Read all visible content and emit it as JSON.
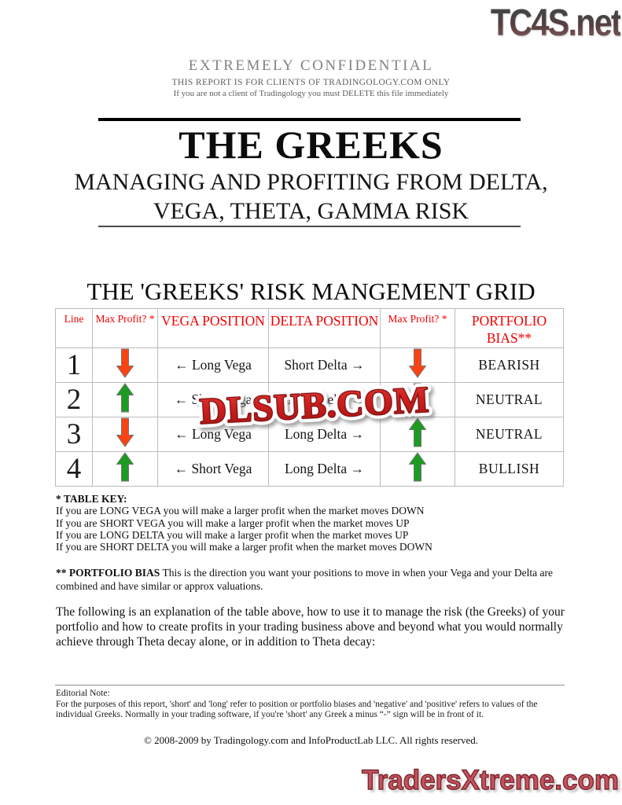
{
  "branding": {
    "top_logo": "TC4S.net",
    "bottom_logo": "TradersXtreme.com",
    "watermark": "DLSUB.COM"
  },
  "confidential": {
    "line1": "EXTREMELY CONFIDENTIAL",
    "line2": "THIS REPORT IS FOR CLIENTS OF TRADINGOLOGY.COM ONLY",
    "line3": "If you are not a client of Tradingology you must DELETE this file immediately"
  },
  "title": {
    "main": "THE GREEKS",
    "subtitle_line1": "MANAGING AND PROFITING FROM DELTA,",
    "subtitle_line2": "VEGA, THETA, GAMMA RISK"
  },
  "grid": {
    "heading": "THE 'GREEKS' RISK MANGEMENT GRID",
    "columns": [
      "Line",
      "Max Profit? *",
      "VEGA POSITION",
      "DELTA POSITION",
      "Max Profit? *",
      "PORTFOLIO BIAS**"
    ],
    "header_color": "#f20000",
    "arrow_up_color": "#1d9b20",
    "arrow_down_color": "#fb4312",
    "rows": [
      {
        "line": "1",
        "vega_profit": "down",
        "vega": "← Long Vega",
        "delta": "Short Delta →",
        "delta_profit": "down",
        "bias": "BEARISH"
      },
      {
        "line": "2",
        "vega_profit": "up",
        "vega": "← Short Vega",
        "delta": "Short Delta →",
        "delta_profit": "down",
        "bias": "NEUTRAL"
      },
      {
        "line": "3",
        "vega_profit": "down",
        "vega": "← Long Vega",
        "delta": "Long Delta →",
        "delta_profit": "up",
        "bias": "NEUTRAL"
      },
      {
        "line": "4",
        "vega_profit": "up",
        "vega": "← Short Vega",
        "delta": "Long Delta →",
        "delta_profit": "up",
        "bias": "BULLISH"
      }
    ]
  },
  "table_key": {
    "heading": "* TABLE KEY:",
    "lines": [
      "If you are LONG VEGA you will make a larger profit when the market moves DOWN",
      "If you are SHORT VEGA you will make a larger profit when the market moves UP",
      "If you are LONG DELTA you will make a larger profit when the market moves UP",
      "If you are SHORT DELTA you will make a larger profit when the market moves DOWN"
    ]
  },
  "portfolio_bias_note": {
    "bold": "** PORTFOLIO BIAS",
    "text": " This is the direction you want your positions to move in when your Vega and your Delta are combined and have similar or approx valuations."
  },
  "explanation": "The following is an explanation of the table above, how to use it to manage the risk (the Greeks) of your portfolio and how to create profits in your trading business above and beyond what you would normally achieve through Theta decay alone, or in addition to Theta decay:",
  "editorial": {
    "heading": "Editorial Note:",
    "text": "For the purposes of this report, 'short' and 'long' refer to position or portfolio biases and 'negative' and 'positive' refers to values of the individual Greeks. Normally in your trading software, if you're 'short' any Greek a minus “-” sign will be in front of it."
  },
  "copyright": "© 2008-2009 by Tradingology.com and InfoProductLab LLC. All rights reserved."
}
